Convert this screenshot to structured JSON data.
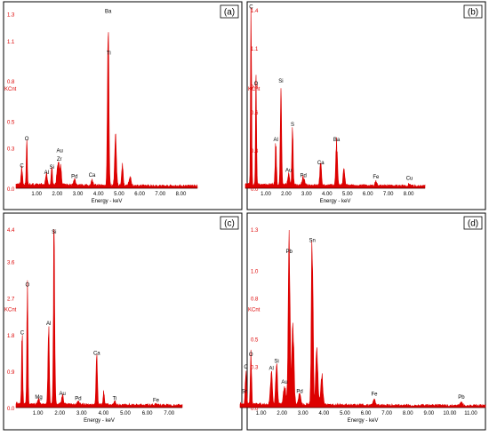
{
  "figure": {
    "border_color": "#000000",
    "spectrum_color": "#dd0000",
    "label_color": "#000000"
  },
  "chart_data": [
    {
      "type": "area",
      "panel_label": "(a)",
      "ylabel": "KCnt",
      "xlabel": "Energy - keV",
      "xlim": [
        0,
        8.8
      ],
      "ylim": [
        0,
        1.35
      ],
      "xticks": [
        1.0,
        2.0,
        3.0,
        4.0,
        5.0,
        6.0,
        7.0,
        8.0
      ],
      "xtick_labels": [
        "1.00",
        "2.00",
        "3.00",
        "4.00",
        "5.00",
        "6.00",
        "7.00",
        "8.00"
      ],
      "yticks": [
        0.0,
        0.3,
        0.5,
        0.8,
        1.1,
        1.3
      ],
      "ytick_labels": [
        "0.0",
        "0.3",
        "0.5",
        "0.8",
        "1.1",
        "1.3"
      ],
      "peaks": [
        {
          "x": 0.28,
          "y": 0.13,
          "w": 0.03
        },
        {
          "x": 0.52,
          "y": 0.33,
          "w": 0.025
        },
        {
          "x": 1.48,
          "y": 0.08,
          "w": 0.04
        },
        {
          "x": 1.74,
          "y": 0.12,
          "w": 0.03
        },
        {
          "x": 2.04,
          "y": 0.18,
          "w": 0.05
        },
        {
          "x": 2.16,
          "y": 0.13,
          "w": 0.04
        },
        {
          "x": 2.84,
          "y": 0.04,
          "w": 0.05
        },
        {
          "x": 3.69,
          "y": 0.04,
          "w": 0.04
        },
        {
          "x": 4.47,
          "y": 1.28,
          "w": 0.035
        },
        {
          "x": 4.83,
          "y": 0.35,
          "w": 0.04
        },
        {
          "x": 5.16,
          "y": 0.14,
          "w": 0.04
        },
        {
          "x": 5.53,
          "y": 0.06,
          "w": 0.05
        }
      ],
      "peak_labels": [
        {
          "x": 0.28,
          "y": 0.13,
          "label": "C"
        },
        {
          "x": 0.52,
          "y": 0.33,
          "label": "O"
        },
        {
          "x": 1.48,
          "y": 0.08,
          "label": "Al"
        },
        {
          "x": 1.74,
          "y": 0.12,
          "label": "Si"
        },
        {
          "x": 2.1,
          "y": 0.18,
          "label": "Zr"
        },
        {
          "x": 2.12,
          "y": 0.24,
          "label": "Au"
        },
        {
          "x": 2.84,
          "y": 0.05,
          "label": "Pd"
        },
        {
          "x": 3.69,
          "y": 0.06,
          "label": "Ca"
        },
        {
          "x": 4.47,
          "y": 1.28,
          "label": "Ba"
        },
        {
          "x": 4.5,
          "y": 0.97,
          "label": "Ti"
        }
      ]
    },
    {
      "type": "area",
      "panel_label": "(b)",
      "ylabel": "KCnt",
      "xlabel": "Energy - keV",
      "xlim": [
        0,
        8.8
      ],
      "ylim": [
        0,
        1.42
      ],
      "xticks": [
        1.0,
        2.0,
        3.0,
        4.0,
        5.0,
        6.0,
        7.0,
        8.0
      ],
      "xtick_labels": [
        "1.00",
        "2.00",
        "3.00",
        "4.00",
        "5.00",
        "6.00",
        "7.00",
        "8.00"
      ],
      "yticks": [
        0.0,
        0.3,
        0.6,
        0.8,
        1.1,
        1.4
      ],
      "ytick_labels": [
        "0.0",
        "0.3",
        "0.6",
        "0.8",
        "1.1",
        "1.4"
      ],
      "peaks": [
        {
          "x": 0.28,
          "y": 1.38,
          "w": 0.025
        },
        {
          "x": 0.52,
          "y": 0.78,
          "w": 0.025
        },
        {
          "x": 1.49,
          "y": 0.34,
          "w": 0.03
        },
        {
          "x": 1.74,
          "y": 0.8,
          "w": 0.03
        },
        {
          "x": 2.12,
          "y": 0.1,
          "w": 0.04
        },
        {
          "x": 2.31,
          "y": 0.46,
          "w": 0.03
        },
        {
          "x": 2.84,
          "y": 0.06,
          "w": 0.05
        },
        {
          "x": 3.69,
          "y": 0.16,
          "w": 0.04
        },
        {
          "x": 4.47,
          "y": 0.34,
          "w": 0.04
        },
        {
          "x": 4.83,
          "y": 0.13,
          "w": 0.04
        },
        {
          "x": 6.4,
          "y": 0.03,
          "w": 0.05
        },
        {
          "x": 8.04,
          "y": 0.02,
          "w": 0.05
        }
      ],
      "peak_labels": [
        {
          "x": 0.28,
          "y": 1.38,
          "label": "C"
        },
        {
          "x": 0.52,
          "y": 0.78,
          "label": "O"
        },
        {
          "x": 1.49,
          "y": 0.34,
          "label": "Al"
        },
        {
          "x": 1.74,
          "y": 0.8,
          "label": "Si"
        },
        {
          "x": 2.12,
          "y": 0.1,
          "label": "Au"
        },
        {
          "x": 2.31,
          "y": 0.46,
          "label": "S"
        },
        {
          "x": 2.84,
          "y": 0.06,
          "label": "Pd"
        },
        {
          "x": 3.69,
          "y": 0.16,
          "label": "Ca"
        },
        {
          "x": 4.47,
          "y": 0.34,
          "label": "Ba"
        },
        {
          "x": 6.4,
          "y": 0.05,
          "label": "Fe"
        },
        {
          "x": 8.04,
          "y": 0.04,
          "label": "Cu"
        }
      ]
    },
    {
      "type": "area",
      "panel_label": "(c)",
      "ylabel": "KCnt",
      "xlabel": "Energy - keV",
      "xlim": [
        0,
        7.6
      ],
      "ylim": [
        0,
        4.4
      ],
      "xticks": [
        1.0,
        2.0,
        3.0,
        4.0,
        5.0,
        6.0,
        7.0
      ],
      "xtick_labels": [
        "1.00",
        "2.00",
        "3.00",
        "4.00",
        "5.00",
        "6.00",
        "7.00"
      ],
      "yticks": [
        0.0,
        0.9,
        1.8,
        2.7,
        3.6,
        4.4
      ],
      "ytick_labels": [
        "0.0",
        "0.9",
        "1.8",
        "2.7",
        "3.6",
        "4.4"
      ],
      "peaks": [
        {
          "x": 0.28,
          "y": 1.72,
          "w": 0.025
        },
        {
          "x": 0.52,
          "y": 2.9,
          "w": 0.025
        },
        {
          "x": 1.04,
          "y": 0.13,
          "w": 0.04
        },
        {
          "x": 1.49,
          "y": 1.95,
          "w": 0.03
        },
        {
          "x": 1.74,
          "y": 4.2,
          "w": 0.03
        },
        {
          "x": 2.12,
          "y": 0.22,
          "w": 0.04
        },
        {
          "x": 2.84,
          "y": 0.08,
          "w": 0.05
        },
        {
          "x": 3.69,
          "y": 1.22,
          "w": 0.03
        },
        {
          "x": 4.01,
          "y": 0.3,
          "w": 0.03
        },
        {
          "x": 4.51,
          "y": 0.08,
          "w": 0.04
        },
        {
          "x": 6.4,
          "y": 0.04,
          "w": 0.05
        }
      ],
      "peak_labels": [
        {
          "x": 0.28,
          "y": 1.72,
          "label": "C"
        },
        {
          "x": 0.52,
          "y": 2.9,
          "label": "O"
        },
        {
          "x": 1.04,
          "y": 0.13,
          "label": "Mg"
        },
        {
          "x": 1.49,
          "y": 1.95,
          "label": "Al"
        },
        {
          "x": 1.74,
          "y": 4.2,
          "label": "Si"
        },
        {
          "x": 2.12,
          "y": 0.22,
          "label": "Au"
        },
        {
          "x": 2.84,
          "y": 0.1,
          "label": "Pd"
        },
        {
          "x": 3.69,
          "y": 1.22,
          "label": "Ca"
        },
        {
          "x": 4.51,
          "y": 0.1,
          "label": "Ti"
        },
        {
          "x": 6.4,
          "y": 0.06,
          "label": "Fe"
        }
      ]
    },
    {
      "type": "area",
      "panel_label": "(d)",
      "ylabel": "KCnt",
      "xlabel": "Energy - keV",
      "xlim": [
        0,
        11.7
      ],
      "ylim": [
        0,
        1.3
      ],
      "xticks": [
        1.0,
        2.0,
        3.0,
        4.0,
        5.0,
        6.0,
        7.0,
        8.0,
        9.0,
        10.0,
        11.0
      ],
      "xtick_labels": [
        "1.00",
        "2.00",
        "3.00",
        "4.00",
        "5.00",
        "6.00",
        "7.00",
        "8.00",
        "9.00",
        "10.00",
        "11.00"
      ],
      "yticks": [
        0.0,
        0.3,
        0.5,
        0.8,
        1.0,
        1.3
      ],
      "ytick_labels": [
        "0.0",
        "0.3",
        "0.5",
        "0.8",
        "1.0",
        "1.3"
      ],
      "peaks": [
        {
          "x": 0.28,
          "y": 0.26,
          "w": 0.03
        },
        {
          "x": 0.52,
          "y": 0.35,
          "w": 0.03
        },
        {
          "x": 1.49,
          "y": 0.25,
          "w": 0.04
        },
        {
          "x": 1.74,
          "y": 0.3,
          "w": 0.04
        },
        {
          "x": 2.12,
          "y": 0.15,
          "w": 0.05
        },
        {
          "x": 2.34,
          "y": 1.1,
          "w": 0.045
        },
        {
          "x": 2.52,
          "y": 0.55,
          "w": 0.05
        },
        {
          "x": 2.84,
          "y": 0.08,
          "w": 0.05
        },
        {
          "x": 3.44,
          "y": 1.18,
          "w": 0.04
        },
        {
          "x": 3.66,
          "y": 0.4,
          "w": 0.05
        },
        {
          "x": 3.9,
          "y": 0.2,
          "w": 0.05
        },
        {
          "x": 6.4,
          "y": 0.04,
          "w": 0.06
        },
        {
          "x": 10.55,
          "y": 0.02,
          "w": 0.07
        }
      ],
      "peak_labels": [
        {
          "x": 0.22,
          "y": 0.08,
          "label": "Sn"
        },
        {
          "x": 0.28,
          "y": 0.26,
          "label": "C"
        },
        {
          "x": 0.52,
          "y": 0.35,
          "label": "O"
        },
        {
          "x": 1.49,
          "y": 0.25,
          "label": "Al"
        },
        {
          "x": 1.74,
          "y": 0.3,
          "label": "Si"
        },
        {
          "x": 2.12,
          "y": 0.15,
          "label": "Au"
        },
        {
          "x": 2.34,
          "y": 1.1,
          "label": "Pb"
        },
        {
          "x": 2.84,
          "y": 0.08,
          "label": "Pd"
        },
        {
          "x": 3.44,
          "y": 1.18,
          "label": "Sn"
        },
        {
          "x": 6.4,
          "y": 0.06,
          "label": "Fe"
        },
        {
          "x": 10.55,
          "y": 0.04,
          "label": "Pb"
        }
      ]
    }
  ]
}
